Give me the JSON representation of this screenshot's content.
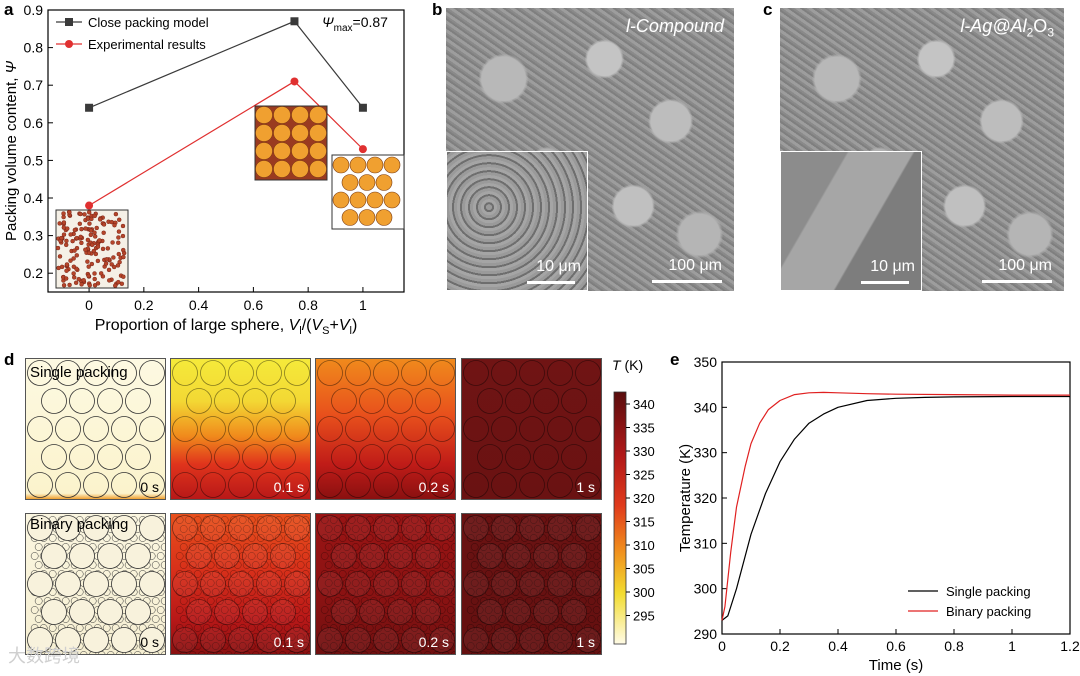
{
  "panels": {
    "a": "a",
    "b": "b",
    "c": "c",
    "d": "d",
    "e": "e"
  },
  "chart_a": {
    "ylabel_prefix": "Packing volume content, ",
    "ylabel_symbol": "Ψ",
    "xlabel_prefix": "Proportion of large sphere, ",
    "annotation": "Ψ",
    "annotation_sub": "max",
    "annotation_value": "=0.87",
    "yticks": [
      "0.2",
      "0.3",
      "0.4",
      "0.5",
      "0.6",
      "0.7",
      "0.8",
      "0.9"
    ],
    "xticks": [
      "0",
      "0.2",
      "0.4",
      "0.6",
      "0.8",
      "1"
    ]
  },
  "sem_b": {
    "label": "l-Compound",
    "inset_scale": "10 μm",
    "main_scale": "100 μm"
  },
  "sem_c": {
    "label_prefix": "l-Ag@Al",
    "label_sub1": "2",
    "label_mid": "O",
    "label_sub2": "3",
    "inset_scale": "10 μm",
    "main_scale": "100 μm"
  },
  "sim_d": {
    "row1_label": "Single packing",
    "row2_label": "Binary packing",
    "times": [
      "0 s",
      "0.1 s",
      "0.2 s",
      "1 s"
    ],
    "colorbar_title": "T",
    "colorbar_unit": " (K)",
    "colorbar_ticks": [
      "340",
      "335",
      "330",
      "325",
      "320",
      "315",
      "310",
      "305",
      "300",
      "295"
    ]
  },
  "chart_e": {
    "ylabel": "Temperature (K)",
    "xlabel": "Time (s)",
    "yticks": [
      "290",
      "300",
      "310",
      "320",
      "330",
      "340",
      "350"
    ],
    "xticks": [
      "0",
      "0.2",
      "0.4",
      "0.6",
      "0.8",
      "1",
      "1.2"
    ]
  },
  "watermark": "大数跨境",
  "chart_data": [
    {
      "type": "line",
      "x": [
        0,
        0.75,
        1
      ],
      "xlim": [
        -0.15,
        1.15
      ],
      "ylim": [
        0.15,
        0.9
      ],
      "series": [
        {
          "name": "Close packing model",
          "values": [
            0.64,
            0.87,
            0.64
          ],
          "color": "#3a3a3a",
          "marker": "square"
        },
        {
          "name": "Experimental results",
          "values": [
            0.38,
            0.71,
            0.53
          ],
          "color": "#e03030",
          "marker": "circle"
        }
      ],
      "legend": "top-left"
    },
    {
      "type": "line",
      "xlim": [
        0,
        1.2
      ],
      "ylim": [
        290,
        350
      ],
      "series": [
        {
          "name": "Single packing",
          "color": "#000000",
          "x": [
            0,
            0.02,
            0.05,
            0.1,
            0.15,
            0.2,
            0.25,
            0.3,
            0.35,
            0.4,
            0.5,
            0.6,
            0.7,
            0.8,
            1.0,
            1.2
          ],
          "values": [
            293,
            294,
            300,
            312,
            321,
            328,
            333,
            336.5,
            338.5,
            340,
            341.5,
            342,
            342.2,
            342.3,
            342.4,
            342.4
          ]
        },
        {
          "name": "Binary packing",
          "color": "#e02020",
          "x": [
            0,
            0.01,
            0.03,
            0.05,
            0.08,
            0.1,
            0.13,
            0.16,
            0.2,
            0.25,
            0.3,
            0.35,
            0.4,
            0.5,
            0.6,
            0.8,
            1.0,
            1.2
          ],
          "values": [
            293,
            296,
            308,
            318,
            327,
            332,
            336.5,
            339.5,
            341.5,
            342.8,
            343.2,
            343.3,
            343.2,
            343.0,
            342.9,
            342.8,
            342.7,
            342.7
          ]
        }
      ],
      "legend": "bottom-right"
    }
  ]
}
